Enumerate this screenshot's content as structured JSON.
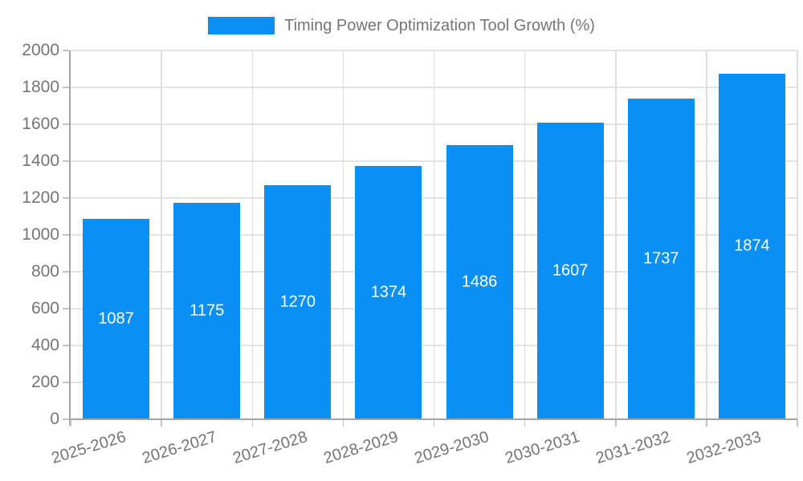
{
  "legend": {
    "label": "Timing Power Optimization Tool Growth (%)"
  },
  "chart_data": {
    "type": "bar",
    "title": "",
    "series_name": "Timing Power Optimization Tool Growth (%)",
    "categories": [
      "2025-2026",
      "2026-2027",
      "2027-2028",
      "2028-2029",
      "2029-2030",
      "2030-2031",
      "2031-2032",
      "2032-2033"
    ],
    "values": [
      1087,
      1175,
      1270,
      1374,
      1486,
      1607,
      1737,
      1874
    ],
    "xlabel": "",
    "ylabel": "",
    "ylim": [
      0,
      2000
    ],
    "ytick_step": 200,
    "ytick_labels": [
      "0",
      "200",
      "400",
      "600",
      "800",
      "1000",
      "1200",
      "1400",
      "1600",
      "1800",
      "2000"
    ],
    "grid": "on",
    "legend_position": "top",
    "value_labels_position": "inside-middle",
    "colors": {
      "bar": "#0a8ff5",
      "value_label": "#ffffff",
      "axis_text": "#757575",
      "axis_line": "#a3a3a3",
      "grid_line": "#e4e4e4"
    }
  }
}
